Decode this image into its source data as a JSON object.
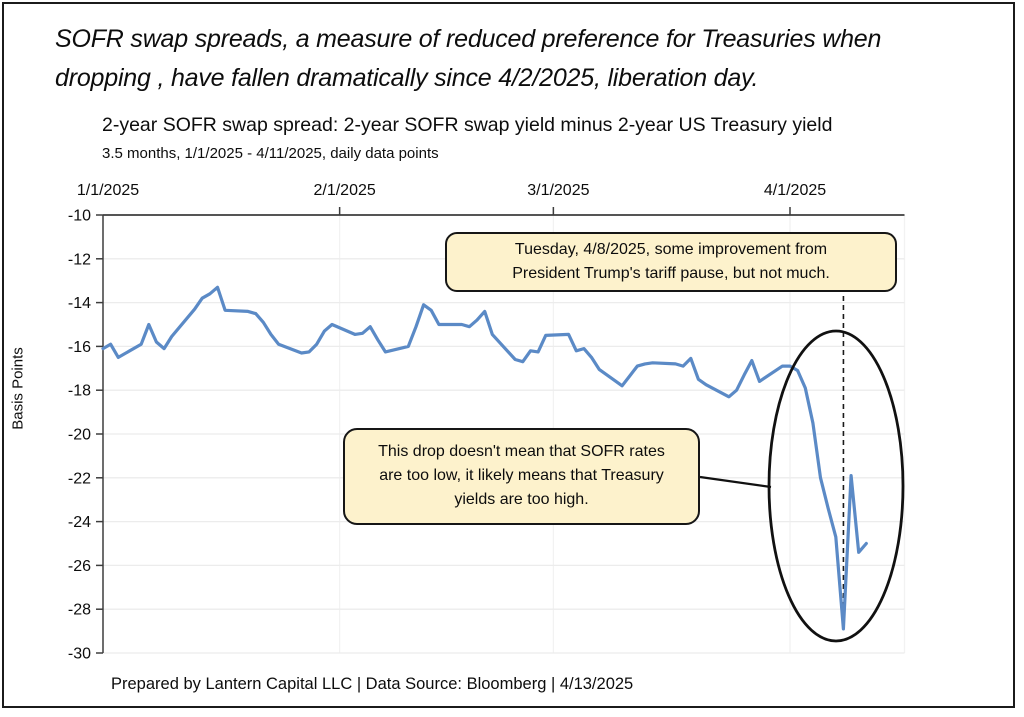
{
  "window": {
    "background": "#ffffff",
    "frame_border_color": "#1b1b1b"
  },
  "headline": {
    "text": "SOFR swap spreads, a measure of reduced preference for Treasuries when\ndropping , have fallen dramatically since 4/2/2025, liberation day."
  },
  "chart_header": {
    "title": "2-year SOFR swap spread: 2-year SOFR swap yield minus 2-year US Treasury yield",
    "subtitle": "3.5 months, 1/1/2025 - 4/11/2025, daily data points"
  },
  "annotations": {
    "tariff_pause_note": "Tuesday, 4/8/2025, some improvement from\nPresident Trump's tariff pause, but not much.",
    "drop_note": "This drop doesn't mean that SOFR rates\nare too low, it likely means that Treasury\nyields are too high.",
    "note_fill": "#fdf2cc",
    "note_border": "#161616",
    "highlight_shape": "ellipse",
    "event_line_date": "4/8/2025"
  },
  "footer": {
    "text": "Prepared by Lantern Capital LLC | Data Source: Bloomberg | 4/13/2025"
  },
  "chart_data": {
    "type": "line",
    "title": "2-year SOFR swap spread: 2-year SOFR swap yield minus 2-year US Treasury yield",
    "subtitle": "3.5 months, 1/1/2025 - 4/11/2025, daily data points",
    "xlabel": "",
    "ylabel": "Basis Points",
    "ylim": [
      -30,
      -10
    ],
    "ytick_step": 2,
    "grid": "light horizontal + monthly vertical",
    "legend": "none",
    "line_color": "#5b8ac6",
    "axis_color": "#3d3d3d",
    "x_unit": "calendar days since 1/1/2025",
    "x_max_day": 105,
    "x_ticks": [
      {
        "label": "1/1/2025",
        "day": 0
      },
      {
        "label": "2/1/2025",
        "day": 31
      },
      {
        "label": "3/1/2025",
        "day": 59
      },
      {
        "label": "4/1/2025",
        "day": 90
      }
    ],
    "event_marker": {
      "date": "4/8/2025",
      "day": 97,
      "style": "dashed-vertical-line"
    },
    "series": [
      {
        "name": "2-year SOFR swap spread (bp)",
        "dates": [
          "1/1",
          "1/2",
          "1/3",
          "1/6",
          "1/7",
          "1/8",
          "1/9",
          "1/10",
          "1/13",
          "1/14",
          "1/15",
          "1/16",
          "1/17",
          "1/20",
          "1/21",
          "1/22",
          "1/23",
          "1/24",
          "1/27",
          "1/28",
          "1/29",
          "1/30",
          "1/31",
          "2/3",
          "2/4",
          "2/5",
          "2/6",
          "2/7",
          "2/10",
          "2/11",
          "2/12",
          "2/13",
          "2/14",
          "2/17",
          "2/18",
          "2/19",
          "2/20",
          "2/21",
          "2/24",
          "2/25",
          "2/26",
          "2/27",
          "2/28",
          "3/3",
          "3/4",
          "3/5",
          "3/6",
          "3/7",
          "3/10",
          "3/11",
          "3/12",
          "3/13",
          "3/14",
          "3/17",
          "3/18",
          "3/19",
          "3/20",
          "3/21",
          "3/24",
          "3/25",
          "3/26",
          "3/27",
          "3/28",
          "3/31",
          "4/1",
          "4/2",
          "4/3",
          "4/4",
          "4/5",
          "4/6",
          "4/7",
          "4/8",
          "4/9",
          "4/10",
          "4/11"
        ],
        "days": [
          0,
          1,
          2,
          5,
          6,
          7,
          8,
          9,
          12,
          13,
          14,
          15,
          16,
          19,
          20,
          21,
          22,
          23,
          26,
          27,
          28,
          29,
          30,
          33,
          34,
          35,
          36,
          37,
          40,
          41,
          42,
          43,
          44,
          47,
          48,
          49,
          50,
          51,
          54,
          55,
          56,
          57,
          58,
          61,
          62,
          63,
          64,
          65,
          68,
          69,
          70,
          71,
          72,
          75,
          76,
          77,
          78,
          79,
          82,
          83,
          84,
          85,
          86,
          89,
          90,
          91,
          92,
          93,
          94,
          95,
          96,
          97,
          98,
          99,
          100
        ],
        "bp": [
          -16.1,
          -15.9,
          -16.5,
          -15.9,
          -15.0,
          -15.8,
          -16.1,
          -15.55,
          -14.3,
          -13.8,
          -13.6,
          -13.3,
          -14.35,
          -14.4,
          -14.5,
          -14.9,
          -15.45,
          -15.9,
          -16.3,
          -16.25,
          -15.9,
          -15.3,
          -15.0,
          -15.45,
          -15.4,
          -15.1,
          -15.7,
          -16.25,
          -16.0,
          -15.1,
          -14.1,
          -14.35,
          -15.0,
          -15.0,
          -15.1,
          -14.8,
          -14.4,
          -15.45,
          -16.6,
          -16.7,
          -16.2,
          -16.25,
          -15.5,
          -15.45,
          -16.2,
          -16.1,
          -16.5,
          -17.05,
          -17.8,
          -17.35,
          -16.9,
          -16.8,
          -16.75,
          -16.8,
          -16.9,
          -16.55,
          -17.5,
          -17.75,
          -18.3,
          -18.0,
          -17.3,
          -16.65,
          -17.6,
          -16.9,
          -16.9,
          -17.1,
          -17.9,
          -19.5,
          -22.0,
          -23.4,
          -24.7,
          -28.9,
          -21.9,
          -25.4,
          -25.0
        ]
      }
    ]
  }
}
